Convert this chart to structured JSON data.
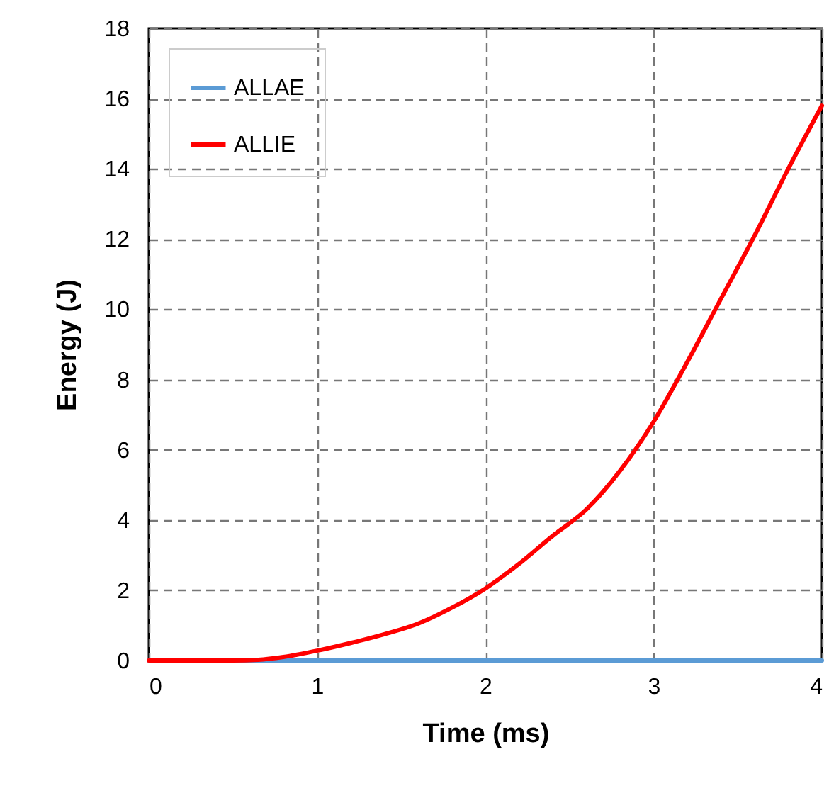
{
  "chart_data": {
    "type": "line",
    "xlabel": "Time (ms)",
    "ylabel": "Energy (J)",
    "xlim": [
      0,
      4
    ],
    "xticks": [
      0,
      1,
      2,
      3,
      4
    ],
    "ylim": [
      0,
      18
    ],
    "yticks": [
      0,
      2,
      4,
      6,
      8,
      10,
      12,
      14,
      16,
      18
    ],
    "grid": true,
    "legend": "top left",
    "line_style": "solid",
    "x": [
      0,
      0.5,
      0.65,
      0.8,
      1,
      1.2,
      1.4,
      1.6,
      1.8,
      2,
      2.2,
      2.4,
      2.6,
      2.8,
      3,
      3.2,
      3.4,
      3.6,
      3.8,
      4
    ],
    "series": [
      {
        "name": "ALLAE",
        "color": "#5b9bd5",
        "values": [
          0,
          0,
          0,
          0,
          0,
          0,
          0,
          0,
          0,
          0,
          0,
          0,
          0,
          0,
          0,
          0,
          0,
          0,
          0,
          0
        ]
      },
      {
        "name": "ALLIE",
        "color": "#ff0000",
        "values": [
          0,
          0,
          0.02,
          0.1,
          0.28,
          0.5,
          0.75,
          1.05,
          1.5,
          2.05,
          2.75,
          3.55,
          4.3,
          5.4,
          6.8,
          8.5,
          10.3,
          12.1,
          14.0,
          15.8
        ]
      }
    ]
  }
}
